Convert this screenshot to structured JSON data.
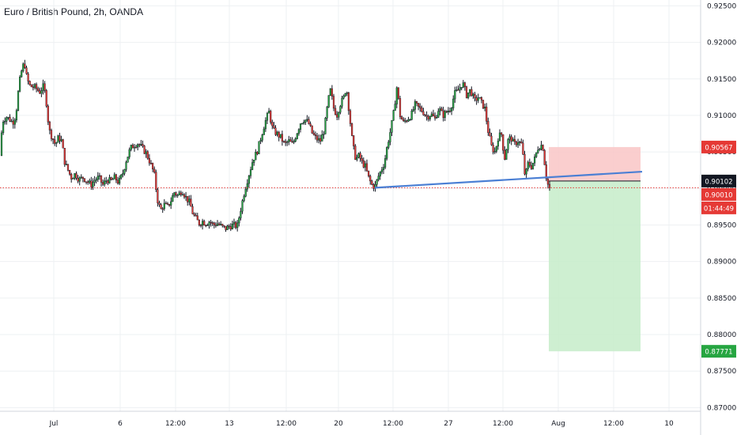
{
  "title": "Euro / British Pound, 2h, OANDA",
  "chart_data": {
    "type": "candlestick",
    "title": "Euro / British Pound, 2h, OANDA",
    "y_ticks": [
      "0.92500",
      "0.92000",
      "0.91500",
      "0.91000",
      "0.90500",
      "0.90000",
      "0.89500",
      "0.89000",
      "0.88500",
      "0.88000",
      "0.87500",
      "0.87000"
    ],
    "x_ticks": [
      "Jul",
      "6",
      "12:00",
      "13",
      "12:00",
      "20",
      "12:00",
      "27",
      "12:00",
      "Aug",
      "12:00",
      "10"
    ],
    "ylim": [
      0.8695,
      0.9258
    ],
    "grid": true,
    "price_path": [
      [
        0,
        0.9045
      ],
      [
        3,
        0.9092
      ],
      [
        8,
        0.9098
      ],
      [
        12,
        0.9095
      ],
      [
        16,
        0.909
      ],
      [
        20,
        0.91
      ],
      [
        24,
        0.9142
      ],
      [
        28,
        0.9165
      ],
      [
        31,
        0.9172
      ],
      [
        34,
        0.915
      ],
      [
        38,
        0.914
      ],
      [
        45,
        0.9138
      ],
      [
        50,
        0.9132
      ],
      [
        55,
        0.914
      ],
      [
        58,
        0.9125
      ],
      [
        62,
        0.908
      ],
      [
        66,
        0.907
      ],
      [
        70,
        0.906
      ],
      [
        74,
        0.907
      ],
      [
        78,
        0.9065
      ],
      [
        82,
        0.9035
      ],
      [
        86,
        0.9025
      ],
      [
        90,
        0.9015
      ],
      [
        95,
        0.902
      ],
      [
        100,
        0.9012
      ],
      [
        105,
        0.9015
      ],
      [
        110,
        0.901
      ],
      [
        115,
        0.9005
      ],
      [
        120,
        0.9012
      ],
      [
        125,
        0.9015
      ],
      [
        130,
        0.9005
      ],
      [
        135,
        0.9012
      ],
      [
        140,
        0.901
      ],
      [
        145,
        0.9015
      ],
      [
        150,
        0.9008
      ],
      [
        155,
        0.902
      ],
      [
        160,
        0.904
      ],
      [
        165,
        0.9055
      ],
      [
        170,
        0.906
      ],
      [
        175,
        0.9062
      ],
      [
        180,
        0.9055
      ],
      [
        185,
        0.9048
      ],
      [
        190,
        0.9035
      ],
      [
        195,
        0.902
      ],
      [
        199,
        0.8985
      ],
      [
        203,
        0.897
      ],
      [
        207,
        0.8978
      ],
      [
        212,
        0.8975
      ],
      [
        217,
        0.8985
      ],
      [
        220,
        0.8995
      ],
      [
        225,
        0.899
      ],
      [
        230,
        0.8998
      ],
      [
        235,
        0.8988
      ],
      [
        240,
        0.898
      ],
      [
        244,
        0.8965
      ],
      [
        248,
        0.8958
      ],
      [
        252,
        0.8952
      ],
      [
        256,
        0.8955
      ],
      [
        260,
        0.8952
      ],
      [
        265,
        0.8955
      ],
      [
        270,
        0.895
      ],
      [
        275,
        0.8952
      ],
      [
        280,
        0.8948
      ],
      [
        285,
        0.8945
      ],
      [
        290,
        0.8948
      ],
      [
        295,
        0.895
      ],
      [
        300,
        0.8948
      ],
      [
        305,
        0.8975
      ],
      [
        310,
        0.9
      ],
      [
        315,
        0.902
      ],
      [
        320,
        0.904
      ],
      [
        325,
        0.905
      ],
      [
        330,
        0.907
      ],
      [
        335,
        0.909
      ],
      [
        340,
        0.9105
      ],
      [
        345,
        0.908
      ],
      [
        350,
        0.9075
      ],
      [
        355,
        0.907
      ],
      [
        360,
        0.906
      ],
      [
        365,
        0.9065
      ],
      [
        370,
        0.906
      ],
      [
        375,
        0.9075
      ],
      [
        380,
        0.909
      ],
      [
        385,
        0.9095
      ],
      [
        390,
        0.909
      ],
      [
        395,
        0.9075
      ],
      [
        400,
        0.9068
      ],
      [
        405,
        0.9065
      ],
      [
        410,
        0.908
      ],
      [
        415,
        0.912
      ],
      [
        418,
        0.9135
      ],
      [
        422,
        0.911
      ],
      [
        426,
        0.91
      ],
      [
        430,
        0.9115
      ],
      [
        435,
        0.9125
      ],
      [
        438,
        0.914
      ],
      [
        442,
        0.91
      ],
      [
        446,
        0.906
      ],
      [
        450,
        0.904
      ],
      [
        454,
        0.9045
      ],
      [
        458,
        0.9035
      ],
      [
        462,
        0.903
      ],
      [
        466,
        0.9015
      ],
      [
        470,
        0.9005
      ],
      [
        474,
        0.9002
      ],
      [
        478,
        0.9015
      ],
      [
        482,
        0.9025
      ],
      [
        486,
        0.9035
      ],
      [
        490,
        0.906
      ],
      [
        494,
        0.908
      ],
      [
        498,
        0.9105
      ],
      [
        502,
        0.914
      ],
      [
        506,
        0.91
      ],
      [
        510,
        0.909
      ],
      [
        515,
        0.9095
      ],
      [
        520,
        0.91
      ],
      [
        525,
        0.9115
      ],
      [
        530,
        0.911
      ],
      [
        535,
        0.9105
      ],
      [
        540,
        0.9098
      ],
      [
        545,
        0.9102
      ],
      [
        550,
        0.9095
      ],
      [
        555,
        0.911
      ],
      [
        560,
        0.91
      ],
      [
        565,
        0.9105
      ],
      [
        570,
        0.911
      ],
      [
        575,
        0.913
      ],
      [
        580,
        0.9135
      ],
      [
        585,
        0.9145
      ],
      [
        590,
        0.9128
      ],
      [
        595,
        0.9135
      ],
      [
        600,
        0.912
      ],
      [
        605,
        0.9125
      ],
      [
        610,
        0.9115
      ],
      [
        613,
        0.911
      ],
      [
        617,
        0.908
      ],
      [
        622,
        0.9055
      ],
      [
        626,
        0.905
      ],
      [
        630,
        0.907
      ],
      [
        634,
        0.9075
      ],
      [
        638,
        0.904
      ],
      [
        642,
        0.9065
      ],
      [
        646,
        0.907
      ],
      [
        650,
        0.906
      ],
      [
        655,
        0.9065
      ],
      [
        660,
        0.906
      ],
      [
        664,
        0.9015
      ],
      [
        668,
        0.9035
      ],
      [
        672,
        0.903
      ],
      [
        676,
        0.904
      ],
      [
        680,
        0.9055
      ],
      [
        684,
        0.906
      ],
      [
        687,
        0.9055
      ],
      [
        690,
        0.902
      ],
      [
        693,
        0.9005
      ],
      [
        696,
        0.8998
      ],
      [
        697,
        0.9001
      ]
    ],
    "trendline": {
      "from": [
        474,
        0.9001
      ],
      "to": [
        812,
        0.9023
      ],
      "color": "#4a7fd4"
    },
    "position": {
      "x_start": 694,
      "x_end": 810,
      "entry": 0.901,
      "stop": 0.90567,
      "target": 0.87771
    },
    "current_line": 0.9001,
    "price_labels": [
      {
        "value": 0.90567,
        "text": "0.90567",
        "bg": "#e53935",
        "fg": "#ffffff"
      },
      {
        "value": 0.90102,
        "text": "0.90102",
        "bg": "#131722",
        "fg": "#ffffff"
      },
      {
        "value": 0.9001,
        "text": "0.90010",
        "bg": "#e53935",
        "fg": "#ffffff"
      },
      {
        "value": 0.8993,
        "text": "01:44:49",
        "bg": "#e53935",
        "fg": "#ffffff"
      },
      {
        "value": 0.87771,
        "text": "0.87771",
        "bg": "#26a541",
        "fg": "#ffffff"
      }
    ]
  },
  "colors": {
    "up": "#26a541",
    "down": "#e53935",
    "candle": "#131722",
    "grid": "#eef0f3",
    "stop_zone": "#f9c6c6",
    "target_zone": "#c6ecc9"
  }
}
